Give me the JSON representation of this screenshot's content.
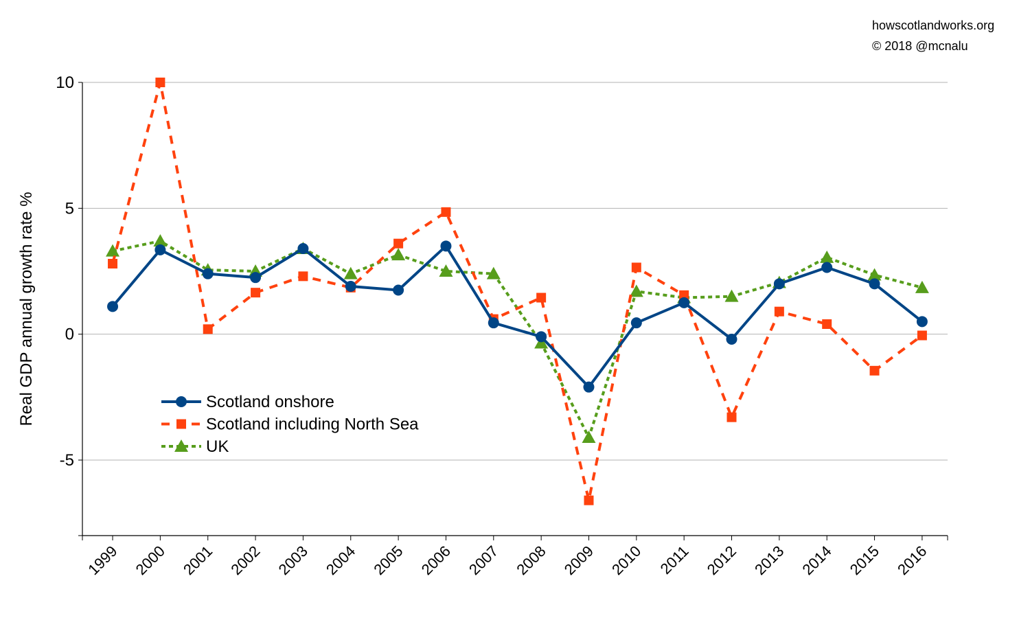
{
  "credits": {
    "site": "howscotlandworks.org",
    "copyright": "© 2018  @mcnalu"
  },
  "chart_data": {
    "type": "line",
    "title": "",
    "xlabel": "",
    "ylabel": "Real GDP annual growth rate %",
    "ylim": [
      -8,
      10
    ],
    "yticks": [
      10,
      5,
      0,
      -5
    ],
    "ytick_labels": [
      "10",
      "5",
      "0",
      "-5"
    ],
    "grid": "horizontal",
    "legend_position": "lower-left",
    "categories": [
      "1999",
      "2000",
      "2001",
      "2002",
      "2003",
      "2004",
      "2005",
      "2006",
      "2007",
      "2008",
      "2009",
      "2010",
      "2011",
      "2012",
      "2013",
      "2014",
      "2015",
      "2016"
    ],
    "series": [
      {
        "name": "Scotland onshore",
        "color": "#004586",
        "line": "solid",
        "marker": "circle",
        "values": [
          1.1,
          3.35,
          2.4,
          2.25,
          3.4,
          1.9,
          1.75,
          3.5,
          0.45,
          -0.1,
          -2.1,
          0.45,
          1.25,
          -0.2,
          2.0,
          2.65,
          2.0,
          0.5
        ]
      },
      {
        "name": "Scotland including North Sea",
        "color": "#ff420e",
        "line": "dashed",
        "marker": "square",
        "values": [
          2.8,
          10.0,
          0.2,
          1.65,
          2.3,
          1.85,
          3.6,
          4.85,
          0.6,
          1.45,
          -6.6,
          2.65,
          1.55,
          -3.3,
          0.9,
          0.4,
          -1.45,
          -0.05
        ]
      },
      {
        "name": "UK",
        "color": "#579d1c",
        "line": "dotted",
        "marker": "triangle",
        "values": [
          3.3,
          3.7,
          2.55,
          2.5,
          3.4,
          2.4,
          3.15,
          2.5,
          2.4,
          -0.35,
          -4.1,
          1.7,
          1.45,
          1.5,
          2.05,
          3.05,
          2.35,
          1.85
        ]
      }
    ]
  }
}
